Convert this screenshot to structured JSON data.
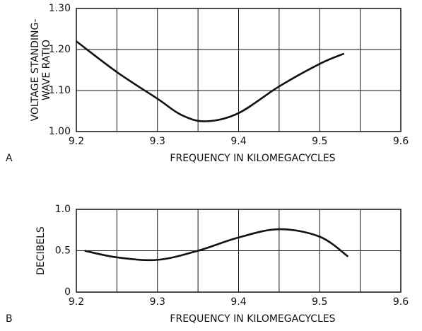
{
  "chart_data": [
    {
      "type": "line",
      "panel": "A",
      "ylabel": [
        "VOLTAGE STANDING-",
        "WAVE RATIO"
      ],
      "xlabel": "FREQUENCY IN KILOMEGACYCLES",
      "x": [
        9.2,
        9.25,
        9.3,
        9.33,
        9.36,
        9.4,
        9.45,
        9.5,
        9.53
      ],
      "values": [
        1.22,
        1.145,
        1.08,
        1.04,
        1.025,
        1.045,
        1.11,
        1.165,
        1.19
      ],
      "color": "#111111",
      "xlim": [
        9.2,
        9.6
      ],
      "xticks": [
        9.2,
        9.3,
        9.4,
        9.5,
        9.6
      ],
      "xminor": [
        9.25,
        9.35,
        9.45,
        9.55
      ],
      "ylim": [
        1.0,
        1.3
      ],
      "yticks": [
        {
          "value": 1.0,
          "label": "1.00"
        },
        {
          "value": 1.1,
          "label": "1.10"
        },
        {
          "value": 1.2,
          "label": "1.20"
        },
        {
          "value": 1.3,
          "label": "1.30"
        }
      ],
      "grid": true
    },
    {
      "type": "line",
      "panel": "B",
      "ylabel": [
        "DECIBELS"
      ],
      "xlabel": "FREQUENCY IN KILOMEGACYCLES",
      "x": [
        9.21,
        9.25,
        9.3,
        9.35,
        9.4,
        9.45,
        9.5,
        9.535
      ],
      "values": [
        0.5,
        0.42,
        0.39,
        0.5,
        0.66,
        0.76,
        0.67,
        0.43
      ],
      "color": "#111111",
      "xlim": [
        9.2,
        9.6
      ],
      "xticks": [
        9.2,
        9.3,
        9.4,
        9.5,
        9.6
      ],
      "xminor": [
        9.25,
        9.35,
        9.45,
        9.55
      ],
      "ylim": [
        0,
        1.0
      ],
      "yticks": [
        0,
        0.5,
        {
          "value": 1.0,
          "label": "1.0"
        }
      ],
      "grid": true
    }
  ]
}
